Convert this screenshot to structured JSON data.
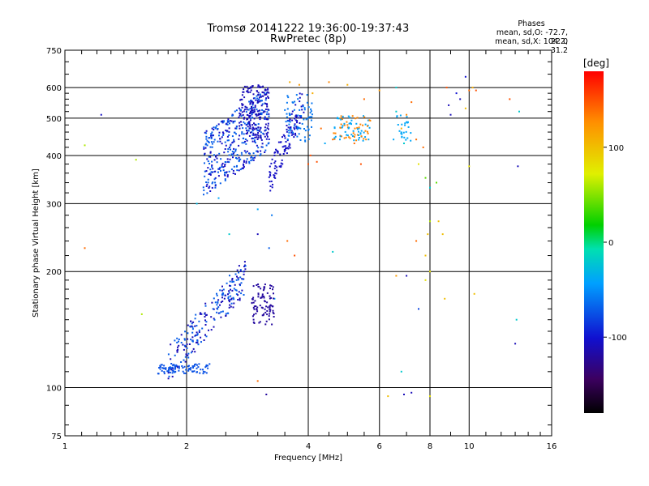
{
  "header": {
    "title": "Tromsø 20141222 19:36:00-19:37:43",
    "subtitle": "RwPretec (8p)",
    "stats_heading": "Phases",
    "stats_o": "mean, sd,O: -72.7, 22.0",
    "stats_x": "mean, sd,X: 104.2, 31.2"
  },
  "colorbar": {
    "label": "[deg]",
    "ticks": [
      "100",
      "0",
      "-100"
    ],
    "range": [
      -180,
      180
    ]
  },
  "chart_data": {
    "type": "scatter",
    "title": "Tromsø 20141222 19:36:00-19:37:43",
    "subtitle": "RwPretec (8p)",
    "xlabel": "Frequency [MHz]",
    "ylabel": "Stationary phase Virtual Height [km]",
    "x_scale": "log",
    "y_scale": "log",
    "xlim": [
      1,
      16
    ],
    "ylim": [
      75,
      750
    ],
    "x_ticks": [
      "1",
      "2",
      "4",
      "6",
      "8",
      "10",
      "16"
    ],
    "y_ticks": [
      "75",
      "100",
      "200",
      "300",
      "400",
      "500",
      "600",
      "750"
    ],
    "grid": true,
    "series": [
      {
        "values": [
          [
            1.23,
            510,
            -105
          ],
          [
            1.12,
            425,
            60
          ],
          [
            1.5,
            390,
            60
          ],
          [
            1.12,
            230,
            140
          ],
          [
            1.55,
            155,
            60
          ],
          [
            1.9,
            125,
            -120
          ],
          [
            2.12,
            300,
            -30
          ],
          [
            2.4,
            310,
            -40
          ],
          [
            2.55,
            250,
            -20
          ],
          [
            3.0,
            290,
            -40
          ],
          [
            3.0,
            250,
            -110
          ],
          [
            3.25,
            280,
            -60
          ],
          [
            3.2,
            230,
            -70
          ],
          [
            3.3,
            170,
            -40
          ],
          [
            3.55,
            240,
            140
          ],
          [
            3.7,
            220,
            150
          ],
          [
            4.0,
            380,
            150
          ],
          [
            4.05,
            400,
            150
          ],
          [
            4.2,
            385,
            150
          ],
          [
            4.4,
            430,
            -40
          ],
          [
            4.3,
            470,
            140
          ],
          [
            4.6,
            440,
            140
          ],
          [
            4.8,
            450,
            140
          ],
          [
            5.0,
            480,
            130
          ],
          [
            5.2,
            430,
            140
          ],
          [
            5.5,
            560,
            140
          ],
          [
            5.0,
            610,
            110
          ],
          [
            4.5,
            620,
            130
          ],
          [
            3.8,
            610,
            120
          ],
          [
            3.6,
            620,
            110
          ],
          [
            4.1,
            580,
            110
          ],
          [
            5.4,
            380,
            150
          ],
          [
            4.6,
            225,
            -20
          ],
          [
            6.0,
            590,
            120
          ],
          [
            6.6,
            600,
            -20
          ],
          [
            6.6,
            520,
            -20
          ],
          [
            7.0,
            510,
            130
          ],
          [
            6.8,
            470,
            110
          ],
          [
            7.2,
            550,
            140
          ],
          [
            6.5,
            440,
            -40
          ],
          [
            6.9,
            430,
            -20
          ],
          [
            7.4,
            440,
            140
          ],
          [
            7.7,
            420,
            140
          ],
          [
            7.5,
            380,
            80
          ],
          [
            7.8,
            350,
            40
          ],
          [
            8.0,
            330,
            -20
          ],
          [
            8.3,
            340,
            40
          ],
          [
            8.0,
            270,
            60
          ],
          [
            7.9,
            250,
            100
          ],
          [
            7.8,
            220,
            100
          ],
          [
            8.4,
            270,
            100
          ],
          [
            8.6,
            250,
            100
          ],
          [
            8.0,
            200,
            80
          ],
          [
            7.8,
            190,
            80
          ],
          [
            7.0,
            195,
            -110
          ],
          [
            8.8,
            600,
            150
          ],
          [
            9.3,
            580,
            -100
          ],
          [
            8.9,
            540,
            -110
          ],
          [
            9.0,
            510,
            -110
          ],
          [
            9.5,
            560,
            -110
          ],
          [
            9.8,
            530,
            100
          ],
          [
            10.2,
            600,
            110
          ],
          [
            10.0,
            590,
            140
          ],
          [
            10.4,
            590,
            150
          ],
          [
            10.0,
            375,
            80
          ],
          [
            9.8,
            640,
            -100
          ],
          [
            8.7,
            170,
            100
          ],
          [
            10.3,
            175,
            100
          ],
          [
            12.6,
            560,
            150
          ],
          [
            13.3,
            520,
            -20
          ],
          [
            13.2,
            375,
            -110
          ],
          [
            13.1,
            150,
            -20
          ],
          [
            13.0,
            130,
            -110
          ],
          [
            8.0,
            95,
            80
          ],
          [
            7.2,
            97,
            -110
          ],
          [
            6.9,
            96,
            -110
          ],
          [
            6.3,
            95,
            100
          ],
          [
            6.8,
            110,
            -20
          ],
          [
            6.6,
            195,
            120
          ],
          [
            3.0,
            104,
            140
          ],
          [
            3.15,
            96,
            -120
          ],
          [
            7.5,
            160,
            -80
          ],
          [
            7.4,
            240,
            140
          ]
        ]
      }
    ]
  }
}
